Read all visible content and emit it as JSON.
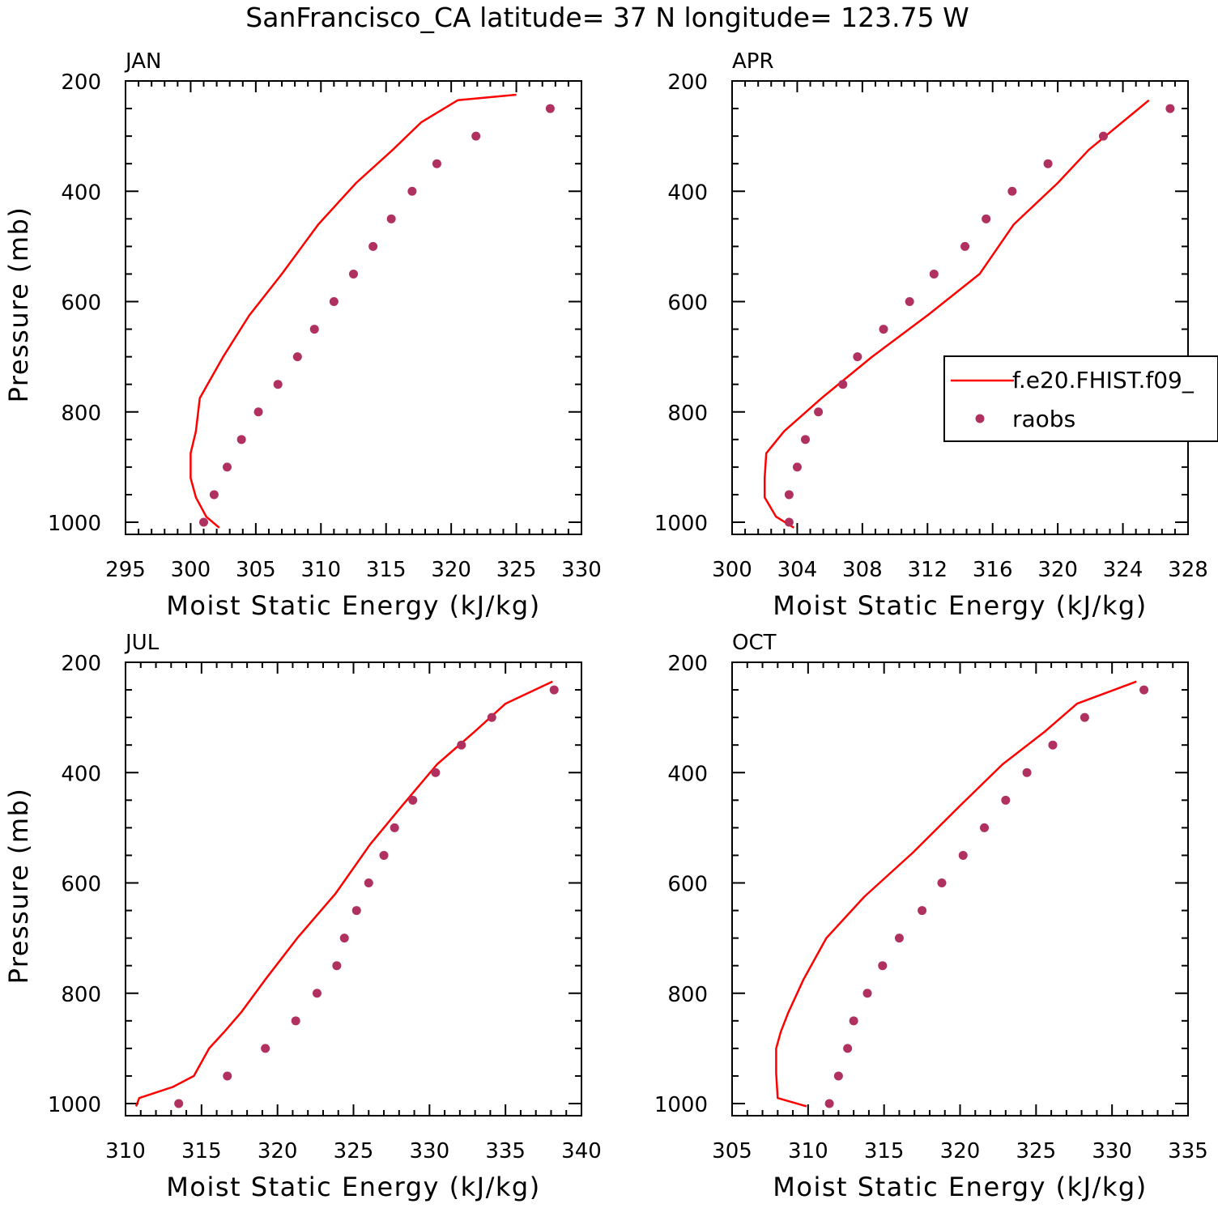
{
  "title": "SanFrancisco_CA  latitude= 37 N longitude= 123.75 W",
  "colors": {
    "model": "#ff0000",
    "raobs": "#b03060",
    "axis": "#000000"
  },
  "legend": {
    "model_label": "f.e20.FHIST.f09_",
    "raobs_label": "raobs"
  },
  "chart_data": [
    {
      "type": "line",
      "panel": "JAN",
      "xlabel": "Moist Static Energy (kJ/kg)",
      "ylabel": "Pressure (mb)",
      "xlim": [
        295,
        330
      ],
      "ylim": [
        1000,
        200
      ],
      "xticks": [
        295,
        300,
        305,
        310,
        315,
        320,
        325,
        330
      ],
      "yticks": [
        200,
        400,
        600,
        800,
        1000
      ],
      "series": [
        {
          "name": "f.e20.FHIST.f09_",
          "kind": "line",
          "x": [
            302.2,
            301.2,
            300.4,
            300.0,
            300.0,
            300.4,
            300.7,
            302.5,
            304.5,
            307.0,
            309.8,
            312.7,
            315.5,
            317.7,
            320.5,
            325.0
          ],
          "y": [
            1010,
            990,
            955,
            920,
            875,
            835,
            775,
            700,
            625,
            550,
            460,
            385,
            325,
            275,
            235,
            225
          ]
        },
        {
          "name": "raobs",
          "kind": "scatter",
          "x": [
            301.0,
            301.8,
            302.8,
            303.9,
            305.2,
            306.7,
            308.2,
            309.5,
            311.0,
            312.5,
            314.0,
            315.4,
            317.0,
            318.9,
            321.9,
            327.6
          ],
          "y": [
            1000,
            950,
            900,
            850,
            800,
            750,
            700,
            650,
            600,
            550,
            500,
            450,
            400,
            350,
            300,
            250
          ]
        }
      ]
    },
    {
      "type": "line",
      "panel": "APR",
      "xlabel": "Moist Static Energy (kJ/kg)",
      "ylabel": "",
      "xlim": [
        300,
        328
      ],
      "ylim": [
        1000,
        200
      ],
      "xticks": [
        300,
        304,
        308,
        312,
        316,
        320,
        324,
        328
      ],
      "yticks": [
        200,
        400,
        600,
        800,
        1000
      ],
      "legend_position": "right",
      "series": [
        {
          "name": "f.e20.FHIST.f09_",
          "kind": "line",
          "x": [
            303.8,
            302.7,
            302.0,
            302.0,
            302.1,
            303.2,
            305.5,
            308.6,
            312.0,
            315.2,
            317.3,
            320.0,
            321.9,
            325.6
          ],
          "y": [
            1010,
            990,
            955,
            920,
            875,
            835,
            775,
            700,
            625,
            550,
            460,
            385,
            325,
            235
          ]
        },
        {
          "name": "raobs",
          "kind": "scatter",
          "x": [
            303.5,
            303.5,
            304.0,
            304.5,
            305.3,
            306.8,
            307.7,
            309.3,
            310.9,
            312.4,
            314.3,
            315.6,
            317.2,
            319.4,
            322.8,
            326.9
          ],
          "y": [
            1000,
            950,
            900,
            850,
            800,
            750,
            700,
            650,
            600,
            550,
            500,
            450,
            400,
            350,
            300,
            250
          ]
        }
      ]
    },
    {
      "type": "line",
      "panel": "JUL",
      "xlabel": "Moist Static Energy (kJ/kg)",
      "ylabel": "Pressure (mb)",
      "xlim": [
        310,
        340
      ],
      "ylim": [
        1000,
        200
      ],
      "xticks": [
        310,
        315,
        320,
        325,
        330,
        335,
        340
      ],
      "yticks": [
        200,
        400,
        600,
        800,
        1000
      ],
      "series": [
        {
          "name": "f.e20.FHIST.f09_",
          "kind": "line",
          "x": [
            310.7,
            310.9,
            313.1,
            314.5,
            315.0,
            315.5,
            316.5,
            317.6,
            319.2,
            321.3,
            323.8,
            326.1,
            328.2,
            330.5,
            333.0,
            335.0,
            338.1
          ],
          "y": [
            1005,
            990,
            970,
            950,
            925,
            900,
            870,
            835,
            775,
            700,
            620,
            530,
            460,
            385,
            325,
            275,
            235
          ]
        },
        {
          "name": "raobs",
          "kind": "scatter",
          "x": [
            313.5,
            316.7,
            319.2,
            321.2,
            322.6,
            323.9,
            324.4,
            325.2,
            326.0,
            327.0,
            327.7,
            328.9,
            330.4,
            332.1,
            334.1,
            338.2
          ],
          "y": [
            1000,
            950,
            900,
            850,
            800,
            750,
            700,
            650,
            600,
            550,
            500,
            450,
            400,
            350,
            300,
            250
          ]
        }
      ]
    },
    {
      "type": "line",
      "panel": "OCT",
      "xlabel": "Moist Static Energy (kJ/kg)",
      "ylabel": "",
      "xlim": [
        305,
        335
      ],
      "ylim": [
        1000,
        200
      ],
      "xticks": [
        305,
        310,
        315,
        320,
        325,
        330,
        335
      ],
      "yticks": [
        200,
        400,
        600,
        800,
        1000
      ],
      "series": [
        {
          "name": "f.e20.FHIST.f09_",
          "kind": "line",
          "x": [
            309.9,
            308.0,
            307.9,
            307.9,
            308.2,
            308.7,
            309.7,
            311.2,
            313.7,
            316.9,
            320.0,
            322.8,
            325.6,
            327.7,
            331.6
          ],
          "y": [
            1005,
            990,
            945,
            900,
            870,
            835,
            775,
            700,
            625,
            545,
            460,
            385,
            325,
            275,
            235
          ]
        },
        {
          "name": "raobs",
          "kind": "scatter",
          "x": [
            311.4,
            312.0,
            312.6,
            313.0,
            313.9,
            314.9,
            316.0,
            317.5,
            318.8,
            320.2,
            321.6,
            323.0,
            324.4,
            326.1,
            328.2,
            332.1
          ],
          "y": [
            1000,
            950,
            900,
            850,
            800,
            750,
            700,
            650,
            600,
            550,
            500,
            450,
            400,
            350,
            300,
            250
          ]
        }
      ]
    }
  ]
}
